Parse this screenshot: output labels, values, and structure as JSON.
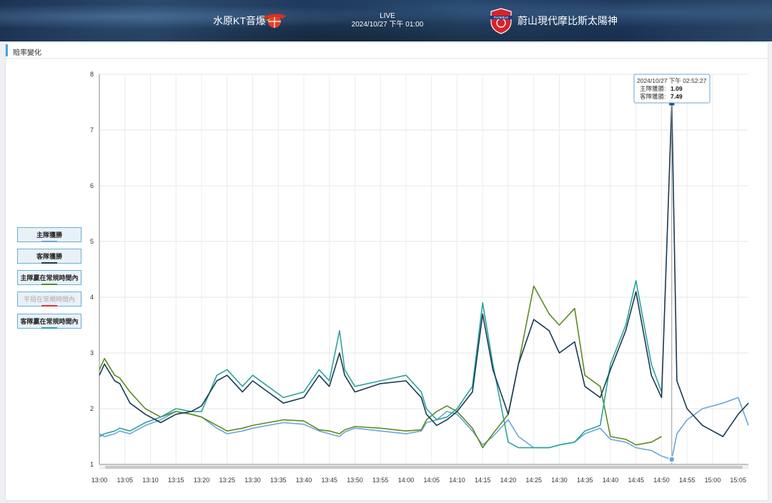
{
  "header": {
    "home_team": "水原KT音爆",
    "away_team": "蔚山現代摩比斯太陽神",
    "status": "LIVE",
    "datetime": "2024/10/27 下午 01:00",
    "away_logo_text": "PHOEBUS"
  },
  "panel_title": "賠率變化",
  "legend": [
    {
      "label": "主隊獲勝",
      "color": "#6aa6d6",
      "active": true
    },
    {
      "label": "客隊獲勝",
      "color": "#183a52",
      "active": true
    },
    {
      "label": "主隊贏在常規時間內",
      "color": "#5c8a22",
      "active": true
    },
    {
      "label": "平局在常規時間內",
      "color": "#e03030",
      "active": false
    },
    {
      "label": "客隊贏在常規時間內",
      "color": "#2aa39c",
      "active": true
    }
  ],
  "tooltip": {
    "time": "2024/10/27 下午 02:52:27",
    "home_label": "主隊獲勝:",
    "home_value": "1.09",
    "away_label": "客隊獲勝:",
    "away_value": "7.49"
  },
  "chart_data": {
    "type": "line",
    "xlabel": "",
    "ylabel": "",
    "ylim": [
      1,
      8
    ],
    "xlim": [
      "13:00",
      "15:07"
    ],
    "yticks": [
      1,
      2,
      3,
      4,
      5,
      6,
      7,
      8
    ],
    "xticks": [
      "13:00",
      "13:05",
      "13:10",
      "13:15",
      "13:20",
      "13:25",
      "13:30",
      "13:35",
      "13:40",
      "13:45",
      "13:50",
      "13:55",
      "14:00",
      "14:05",
      "14:10",
      "14:15",
      "14:20",
      "14:25",
      "14:30",
      "14:35",
      "14:40",
      "14:45",
      "14:50",
      "14:55",
      "15:00",
      "15:05"
    ],
    "grid": true,
    "series": [
      {
        "name": "主隊獲勝",
        "color": "#6aa6d6",
        "x": [
          "13:00",
          "13:01",
          "13:03",
          "13:04",
          "13:06",
          "13:09",
          "13:12",
          "13:15",
          "13:18",
          "13:20",
          "13:23",
          "13:25",
          "13:28",
          "13:30",
          "13:33",
          "13:36",
          "13:40",
          "13:43",
          "13:45",
          "13:47",
          "13:48",
          "13:50",
          "13:55",
          "14:00",
          "14:03",
          "14:04",
          "14:06",
          "14:08",
          "14:10",
          "14:13",
          "14:15",
          "14:17",
          "14:20",
          "14:22",
          "14:25",
          "14:28",
          "14:30",
          "14:33",
          "14:35",
          "14:38",
          "14:40",
          "14:43",
          "14:45",
          "14:48",
          "14:50",
          "14:52",
          "14:53",
          "14:55",
          "14:58",
          "15:00",
          "15:02",
          "15:05",
          "15:07"
        ],
        "values": [
          1.55,
          1.5,
          1.55,
          1.6,
          1.55,
          1.7,
          1.8,
          1.95,
          1.9,
          1.85,
          1.65,
          1.55,
          1.6,
          1.65,
          1.7,
          1.75,
          1.72,
          1.6,
          1.55,
          1.5,
          1.58,
          1.65,
          1.6,
          1.55,
          1.6,
          1.75,
          1.8,
          1.95,
          1.9,
          1.6,
          1.35,
          1.5,
          1.8,
          1.5,
          1.3,
          1.3,
          1.35,
          1.4,
          1.55,
          1.65,
          1.45,
          1.4,
          1.3,
          1.25,
          1.15,
          1.09,
          1.55,
          1.8,
          2.0,
          2.05,
          2.1,
          2.2,
          1.7
        ]
      },
      {
        "name": "客隊獲勝",
        "color": "#183a52",
        "x": [
          "13:00",
          "13:01",
          "13:03",
          "13:04",
          "13:06",
          "13:09",
          "13:12",
          "13:15",
          "13:18",
          "13:20",
          "13:23",
          "13:25",
          "13:28",
          "13:30",
          "13:33",
          "13:36",
          "13:40",
          "13:43",
          "13:45",
          "13:47",
          "13:48",
          "13:50",
          "13:55",
          "14:00",
          "14:03",
          "14:04",
          "14:06",
          "14:08",
          "14:10",
          "14:13",
          "14:15",
          "14:17",
          "14:20",
          "14:22",
          "14:25",
          "14:28",
          "14:30",
          "14:33",
          "14:35",
          "14:38",
          "14:40",
          "14:43",
          "14:45",
          "14:48",
          "14:50",
          "14:52",
          "14:53",
          "14:55",
          "14:58",
          "15:00",
          "15:02",
          "15:05",
          "15:07"
        ],
        "values": [
          2.6,
          2.8,
          2.5,
          2.45,
          2.1,
          1.9,
          1.75,
          1.9,
          1.95,
          2.05,
          2.5,
          2.6,
          2.3,
          2.5,
          2.3,
          2.1,
          2.2,
          2.6,
          2.4,
          3.0,
          2.6,
          2.3,
          2.45,
          2.5,
          2.2,
          1.9,
          1.7,
          1.8,
          1.95,
          2.3,
          3.7,
          2.7,
          1.9,
          2.8,
          3.6,
          3.4,
          3.0,
          3.2,
          2.4,
          2.2,
          2.7,
          3.4,
          4.1,
          2.6,
          2.2,
          7.49,
          2.5,
          2.0,
          1.7,
          1.6,
          1.5,
          1.9,
          2.1
        ]
      },
      {
        "name": "主隊贏在常規時間內",
        "color": "#5c8a22",
        "x": [
          "13:00",
          "13:01",
          "13:03",
          "13:04",
          "13:06",
          "13:09",
          "13:12",
          "13:15",
          "13:18",
          "13:20",
          "13:23",
          "13:25",
          "13:28",
          "13:30",
          "13:33",
          "13:36",
          "13:40",
          "13:43",
          "13:45",
          "13:47",
          "13:48",
          "13:50",
          "13:55",
          "14:00",
          "14:03",
          "14:04",
          "14:06",
          "14:08",
          "14:10",
          "14:13",
          "14:15",
          "14:17",
          "14:20",
          "14:22",
          "14:25",
          "14:28",
          "14:30",
          "14:33",
          "14:35",
          "14:38",
          "14:40",
          "14:43",
          "14:45",
          "14:48",
          "14:50"
        ],
        "values": [
          2.7,
          2.9,
          2.6,
          2.55,
          2.3,
          2.0,
          1.85,
          1.95,
          1.9,
          1.85,
          1.7,
          1.6,
          1.65,
          1.7,
          1.75,
          1.8,
          1.78,
          1.62,
          1.6,
          1.55,
          1.62,
          1.68,
          1.65,
          1.6,
          1.62,
          1.8,
          1.95,
          2.05,
          1.95,
          1.65,
          1.3,
          1.55,
          1.9,
          2.8,
          4.2,
          3.7,
          3.5,
          3.8,
          2.6,
          2.4,
          1.5,
          1.45,
          1.35,
          1.4,
          1.5
        ]
      },
      {
        "name": "客隊贏在常規時間內",
        "color": "#2aa39c",
        "x": [
          "13:00",
          "13:01",
          "13:03",
          "13:04",
          "13:06",
          "13:09",
          "13:12",
          "13:15",
          "13:18",
          "13:20",
          "13:23",
          "13:25",
          "13:28",
          "13:30",
          "13:33",
          "13:36",
          "13:40",
          "13:43",
          "13:45",
          "13:47",
          "13:48",
          "13:50",
          "13:55",
          "14:00",
          "14:03",
          "14:04",
          "14:06",
          "14:08",
          "14:10",
          "14:13",
          "14:15",
          "14:17",
          "14:20",
          "14:22",
          "14:25",
          "14:28",
          "14:30",
          "14:33",
          "14:35",
          "14:38",
          "14:40",
          "14:43",
          "14:45",
          "14:48",
          "14:50"
        ],
        "values": [
          1.5,
          1.55,
          1.6,
          1.65,
          1.6,
          1.75,
          1.85,
          2.0,
          1.95,
          1.95,
          2.6,
          2.7,
          2.4,
          2.6,
          2.4,
          2.2,
          2.3,
          2.7,
          2.5,
          3.4,
          2.7,
          2.4,
          2.5,
          2.6,
          2.3,
          2.0,
          1.8,
          1.85,
          2.0,
          2.4,
          3.9,
          2.8,
          1.4,
          1.3,
          1.3,
          1.3,
          1.35,
          1.4,
          1.6,
          1.7,
          2.8,
          3.5,
          4.3,
          2.8,
          2.3
        ]
      }
    ]
  }
}
